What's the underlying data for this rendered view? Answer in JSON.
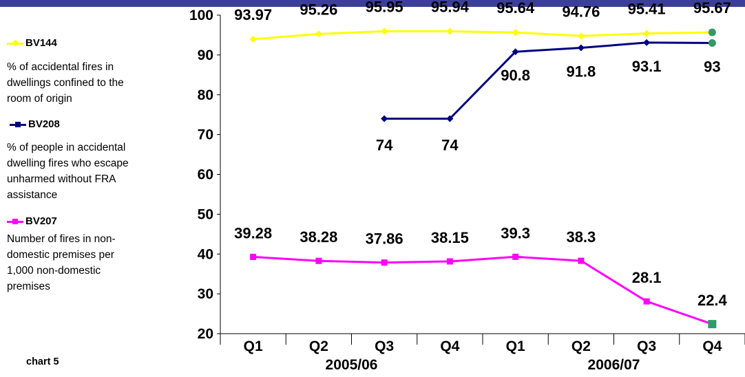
{
  "chart_label": "chart 5",
  "legend": [
    {
      "key": "BV144",
      "description": [
        "% of accidental fires in",
        "dwellings confined to the",
        "room of origin"
      ],
      "color": "#ffff00",
      "marker": "diamond"
    },
    {
      "key": "BV208",
      "description": [
        "% of people in accidental",
        "dwelling fires who escape",
        "unharmed without FRA",
        "assistance"
      ],
      "color": "#000080",
      "marker": "square"
    },
    {
      "key": "BV207",
      "description": [
        "Number of fires in non-",
        "domestic premises per",
        "1,000 non-domestic",
        "premises"
      ],
      "color": "#ff00ff",
      "marker": "square"
    }
  ],
  "chart_data": {
    "type": "line",
    "categories": [
      "Q1",
      "Q2",
      "Q3",
      "Q4",
      "Q1",
      "Q2",
      "Q3",
      "Q4"
    ],
    "groups": [
      {
        "label": "2005/06",
        "span": [
          0,
          3
        ]
      },
      {
        "label": "2006/07",
        "span": [
          4,
          7
        ]
      }
    ],
    "ylim": [
      20,
      100
    ],
    "yticks": [
      20,
      30,
      40,
      50,
      60,
      70,
      80,
      90,
      100
    ],
    "grid": false,
    "highlight_color": "#339966",
    "series": [
      {
        "name": "BV144",
        "color": "#ffff00",
        "marker": "diamond",
        "values": [
          93.97,
          95.26,
          95.95,
          95.94,
          95.64,
          94.76,
          95.41,
          95.67
        ],
        "labels": [
          "93.97",
          "95.26",
          "95.95",
          "95.94",
          "95.64",
          "94.76",
          "95.41",
          "95.67"
        ]
      },
      {
        "name": "BV208",
        "color": "#000080",
        "marker": "diamond",
        "values": [
          null,
          null,
          74,
          74,
          90.8,
          91.8,
          93.1,
          93
        ],
        "labels": [
          null,
          null,
          "74",
          "74",
          "90.8",
          "91.8",
          "93.1",
          "93"
        ]
      },
      {
        "name": "BV207",
        "color": "#ff00ff",
        "marker": "square",
        "values": [
          39.28,
          38.28,
          37.86,
          38.15,
          39.3,
          38.3,
          28.1,
          22.4
        ],
        "labels": [
          "39.28",
          "38.28",
          "37.86",
          "38.15",
          "39.3",
          "38.3",
          "28.1",
          "22.4"
        ]
      }
    ]
  }
}
